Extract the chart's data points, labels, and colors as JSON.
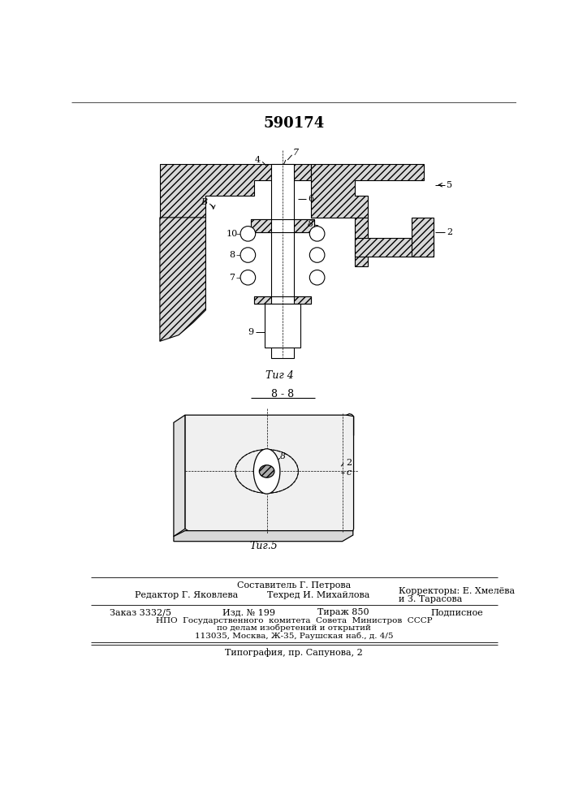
{
  "patent_number": "590174",
  "fig4_label": "Τиг 4",
  "fig5_label": "Τиг.5",
  "section_label": "8 - 8",
  "footer_line1": "Составитель Г. Петрова",
  "footer_editor": "Редактор Г. Яковлева",
  "footer_tech": "Техред И. Михайлова",
  "footer_correctors": "Корректоры: Е. Хмелёва",
  "footer_correctors2": "и З. Тарасова",
  "footer_order": "Заказ 3332/5",
  "footer_izd": "Изд. № 199",
  "footer_tirazh": "Тираж 850",
  "footer_podpisnoe": "Подписное",
  "footer_npo": "НПО  Государственного  комитета  Совета  Министров  СССР",
  "footer_po": "по делам изобретений и открытий",
  "footer_address": "113035, Москва, Ж-35, Раушская наб., д. 4/5",
  "footer_tipografia": "Типография, пр. Сапунова, 2",
  "bg_color": "#ffffff"
}
